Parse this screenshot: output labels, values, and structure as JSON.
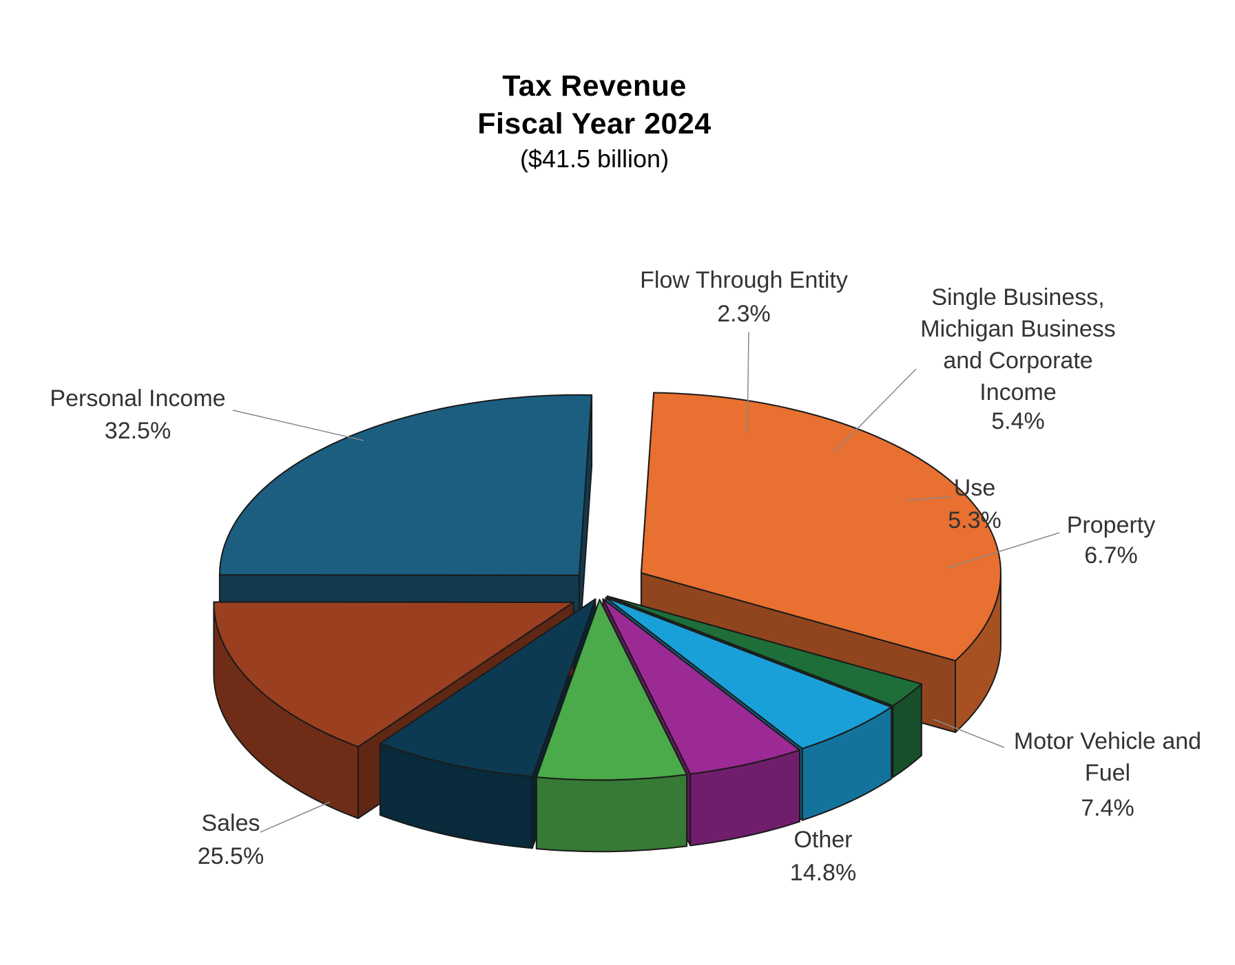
{
  "chart_data": {
    "type": "pie",
    "title": "Tax Revenue",
    "subtitle": "Fiscal Year 2024",
    "total": "($41.5 billion)",
    "slices": [
      {
        "label": "Personal Income",
        "value": 32.5,
        "percent_label": "32.5%",
        "color": "#E87030"
      },
      {
        "label": "Flow Through Entity",
        "value": 2.3,
        "percent_label": "2.3%",
        "color": "#1E6E3A"
      },
      {
        "label": "Single Business, Michigan Business and Corporate Income",
        "value": 5.4,
        "percent_label": "5.4%",
        "color": "#1AA0D8"
      },
      {
        "label": "Use",
        "value": 5.3,
        "percent_label": "5.3%",
        "color": "#9B2A95"
      },
      {
        "label": "Property",
        "value": 6.7,
        "percent_label": "6.7%",
        "color": "#4BAA4A"
      },
      {
        "label": "Motor Vehicle and Fuel",
        "value": 7.4,
        "percent_label": "7.4%",
        "color": "#0C3A52"
      },
      {
        "label": "Other",
        "value": 14.8,
        "percent_label": "14.8%",
        "color": "#9A3F20"
      },
      {
        "label": "Sales",
        "value": 25.5,
        "percent_label": "25.5%",
        "color": "#1B5E80"
      }
    ]
  }
}
